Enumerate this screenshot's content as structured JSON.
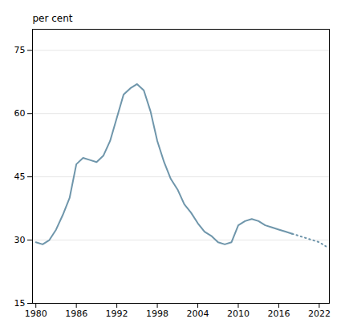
{
  "chart_data": {
    "type": "line",
    "ylabel": "per cent",
    "x": [
      1980,
      1981,
      1982,
      1983,
      1984,
      1985,
      1986,
      1987,
      1988,
      1989,
      1990,
      1991,
      1992,
      1993,
      1994,
      1995,
      1996,
      1997,
      1998,
      1999,
      2000,
      2001,
      2002,
      2003,
      2004,
      2005,
      2006,
      2007,
      2008,
      2009,
      2010,
      2011,
      2012,
      2013,
      2014,
      2015,
      2016,
      2017,
      2018,
      2019,
      2020,
      2021,
      2022,
      2023
    ],
    "series": [
      {
        "color": "#6f96ab",
        "line_style": "solid",
        "values": [
          29.5,
          29.0,
          30.0,
          32.5,
          36.0,
          40.0,
          48.0,
          49.5,
          49.0,
          48.5,
          50.0,
          53.5,
          59.0,
          64.5,
          66.0,
          67.0,
          65.5,
          60.5,
          53.5,
          48.5,
          44.5,
          42.0,
          38.5,
          36.5,
          34.0,
          32.0,
          31.0,
          29.5,
          29.0,
          29.5,
          33.5,
          34.5,
          35.0,
          34.5,
          33.5,
          33.0,
          32.5,
          32.0,
          31.5,
          null,
          null,
          null,
          null,
          null
        ]
      },
      {
        "color": "#6f96ab",
        "line_style": "dotted",
        "values": [
          null,
          null,
          null,
          null,
          null,
          null,
          null,
          null,
          null,
          null,
          null,
          null,
          null,
          null,
          null,
          null,
          null,
          null,
          null,
          null,
          null,
          null,
          null,
          null,
          null,
          null,
          null,
          null,
          null,
          null,
          null,
          null,
          null,
          null,
          null,
          null,
          null,
          null,
          31.5,
          31.0,
          30.5,
          30.0,
          29.5,
          28.5
        ]
      }
    ],
    "xlim": [
      1979.5,
      2023.5
    ],
    "ylim": [
      15,
      80
    ],
    "xticks": [
      1980,
      1986,
      1992,
      1998,
      2004,
      2010,
      2016,
      2022
    ],
    "yticks": [
      15,
      30,
      45,
      60,
      75
    ],
    "grid": true
  }
}
